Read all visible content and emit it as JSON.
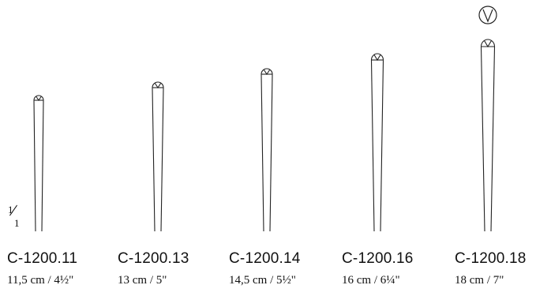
{
  "scale": {
    "numerator": "1",
    "denominator": "1"
  },
  "instruments": [
    {
      "code": "C-1200.11",
      "size": "11,5 cm / 4½\""
    },
    {
      "code": "C-1200.13",
      "size": "13 cm / 5\""
    },
    {
      "code": "C-1200.14",
      "size": "14,5 cm / 5½\""
    },
    {
      "code": "C-1200.16",
      "size": "16 cm / 6¼\""
    },
    {
      "code": "C-1200.18",
      "size": "18 cm / 7\""
    }
  ],
  "detail_icon": "v-tip-detail-icon"
}
